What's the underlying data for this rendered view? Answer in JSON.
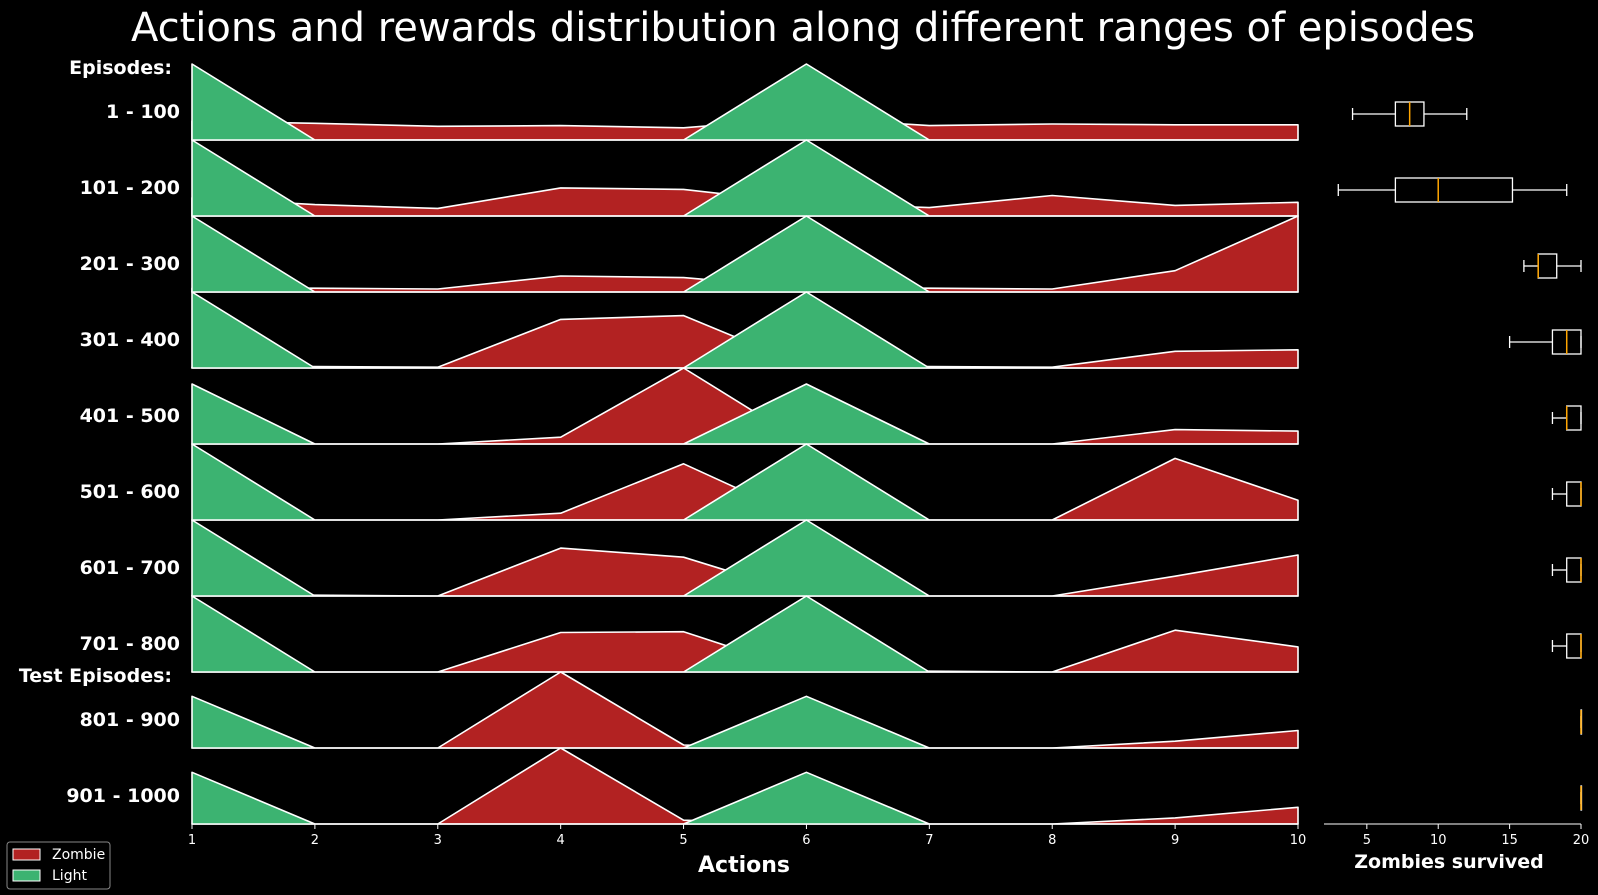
{
  "chart_data": {
    "type": "area",
    "title": "Actions and rewards distribution along different ranges of episodes",
    "group_labels": {
      "train": "Episodes:",
      "test": "Test Episodes:"
    },
    "xlabel": "Actions",
    "x": [
      1,
      2,
      3,
      4,
      5,
      6,
      7,
      8,
      9,
      10
    ],
    "xlim": [
      1,
      10
    ],
    "colors": {
      "Zombie": "#b22222",
      "Light": "#3cb371",
      "box": "#ffffff",
      "median": "#ffa500"
    },
    "legend": {
      "placement": "bottom-left",
      "entries": [
        "Zombie",
        "Light"
      ]
    },
    "rows": [
      {
        "label": "1 - 100",
        "group": "train",
        "zombie": [
          0.25,
          0.22,
          0.18,
          0.19,
          0.16,
          0.29,
          0.19,
          0.21,
          0.2,
          0.2
        ],
        "light": [
          1.0,
          0.0,
          0.0,
          0.0,
          0.0,
          1.0,
          0.0,
          0.0,
          0.0,
          0.0
        ]
      },
      {
        "label": "101 - 200",
        "group": "train",
        "zombie": [
          0.24,
          0.15,
          0.1,
          0.37,
          0.35,
          0.17,
          0.11,
          0.27,
          0.14,
          0.18
        ],
        "light": [
          1.0,
          0.0,
          0.0,
          0.0,
          0.0,
          1.0,
          0.0,
          0.0,
          0.0,
          0.0
        ]
      },
      {
        "label": "201 - 300",
        "group": "train",
        "zombie": [
          0.05,
          0.05,
          0.04,
          0.21,
          0.19,
          0.05,
          0.05,
          0.04,
          0.28,
          1.0
        ],
        "light": [
          1.0,
          0.0,
          0.0,
          0.0,
          0.0,
          1.0,
          0.0,
          0.0,
          0.0,
          0.0
        ]
      },
      {
        "label": "301 - 400",
        "group": "train",
        "zombie": [
          0.01,
          0.02,
          0.01,
          0.64,
          0.69,
          0.02,
          0.02,
          0.01,
          0.22,
          0.24
        ],
        "light": [
          1.0,
          0.0,
          0.0,
          0.0,
          0.0,
          1.0,
          0.0,
          0.0,
          0.0,
          0.0
        ]
      },
      {
        "label": "401 - 500",
        "group": "train",
        "zombie": [
          0.0,
          0.0,
          0.0,
          0.09,
          1.0,
          0.0,
          0.0,
          0.0,
          0.19,
          0.17
        ],
        "light": [
          0.79,
          0.0,
          0.0,
          0.0,
          0.0,
          0.79,
          0.0,
          0.0,
          0.0,
          0.0
        ]
      },
      {
        "label": "501 - 600",
        "group": "train",
        "zombie": [
          0.0,
          0.0,
          0.0,
          0.09,
          0.74,
          0.0,
          0.0,
          0.0,
          0.81,
          0.26
        ],
        "light": [
          1.0,
          0.0,
          0.0,
          0.0,
          0.0,
          1.0,
          0.0,
          0.0,
          0.0,
          0.0
        ]
      },
      {
        "label": "601 - 700",
        "group": "train",
        "zombie": [
          0.01,
          0.01,
          0.0,
          0.63,
          0.51,
          0.01,
          0.0,
          0.0,
          0.26,
          0.54
        ],
        "light": [
          1.0,
          0.0,
          0.0,
          0.0,
          0.0,
          1.0,
          0.0,
          0.0,
          0.0,
          0.0
        ]
      },
      {
        "label": "701 - 800",
        "group": "train",
        "zombie": [
          0.0,
          0.0,
          0.0,
          0.52,
          0.53,
          0.0,
          0.01,
          0.0,
          0.55,
          0.33
        ],
        "light": [
          1.0,
          0.0,
          0.0,
          0.0,
          0.0,
          1.0,
          0.0,
          0.0,
          0.0,
          0.0
        ]
      },
      {
        "label": "801 - 900",
        "group": "test",
        "zombie": [
          0.0,
          0.0,
          0.0,
          1.0,
          0.04,
          0.0,
          0.0,
          0.0,
          0.09,
          0.23
        ],
        "light": [
          0.68,
          0.0,
          0.0,
          0.0,
          0.0,
          0.68,
          0.0,
          0.0,
          0.0,
          0.0
        ]
      },
      {
        "label": "901 - 1000",
        "group": "test",
        "zombie": [
          0.0,
          0.0,
          0.0,
          1.0,
          0.05,
          0.0,
          0.0,
          0.0,
          0.08,
          0.22
        ],
        "light": [
          0.68,
          0.0,
          0.0,
          0.0,
          0.0,
          0.68,
          0.0,
          0.0,
          0.0,
          0.0
        ]
      }
    ],
    "boxplot": {
      "xlabel": "Zombies survived",
      "xlim": [
        2,
        20
      ],
      "xticks": [
        5,
        10,
        15,
        20
      ],
      "rows": [
        {
          "whisker_low": 4,
          "q1": 7,
          "median": 8,
          "q3": 9,
          "whisker_high": 12
        },
        {
          "whisker_low": 3,
          "q1": 7,
          "median": 10,
          "q3": 15.2,
          "whisker_high": 19
        },
        {
          "whisker_low": 16,
          "q1": 17,
          "median": 17,
          "q3": 18.3,
          "whisker_high": 20
        },
        {
          "whisker_low": 15,
          "q1": 18,
          "median": 19,
          "q3": 20,
          "whisker_high": 20
        },
        {
          "whisker_low": 18,
          "q1": 19,
          "median": 19,
          "q3": 20,
          "whisker_high": 20
        },
        {
          "whisker_low": 18,
          "q1": 19,
          "median": 20,
          "q3": 20,
          "whisker_high": 20
        },
        {
          "whisker_low": 18,
          "q1": 19,
          "median": 20,
          "q3": 20,
          "whisker_high": 20
        },
        {
          "whisker_low": 18,
          "q1": 19,
          "median": 20,
          "q3": 20,
          "whisker_high": 20
        },
        {
          "whisker_low": 20,
          "q1": 20,
          "median": 20,
          "q3": 20,
          "whisker_high": 20
        },
        {
          "whisker_low": 20,
          "q1": 20,
          "median": 20,
          "q3": 20,
          "whisker_high": 20
        }
      ]
    }
  }
}
